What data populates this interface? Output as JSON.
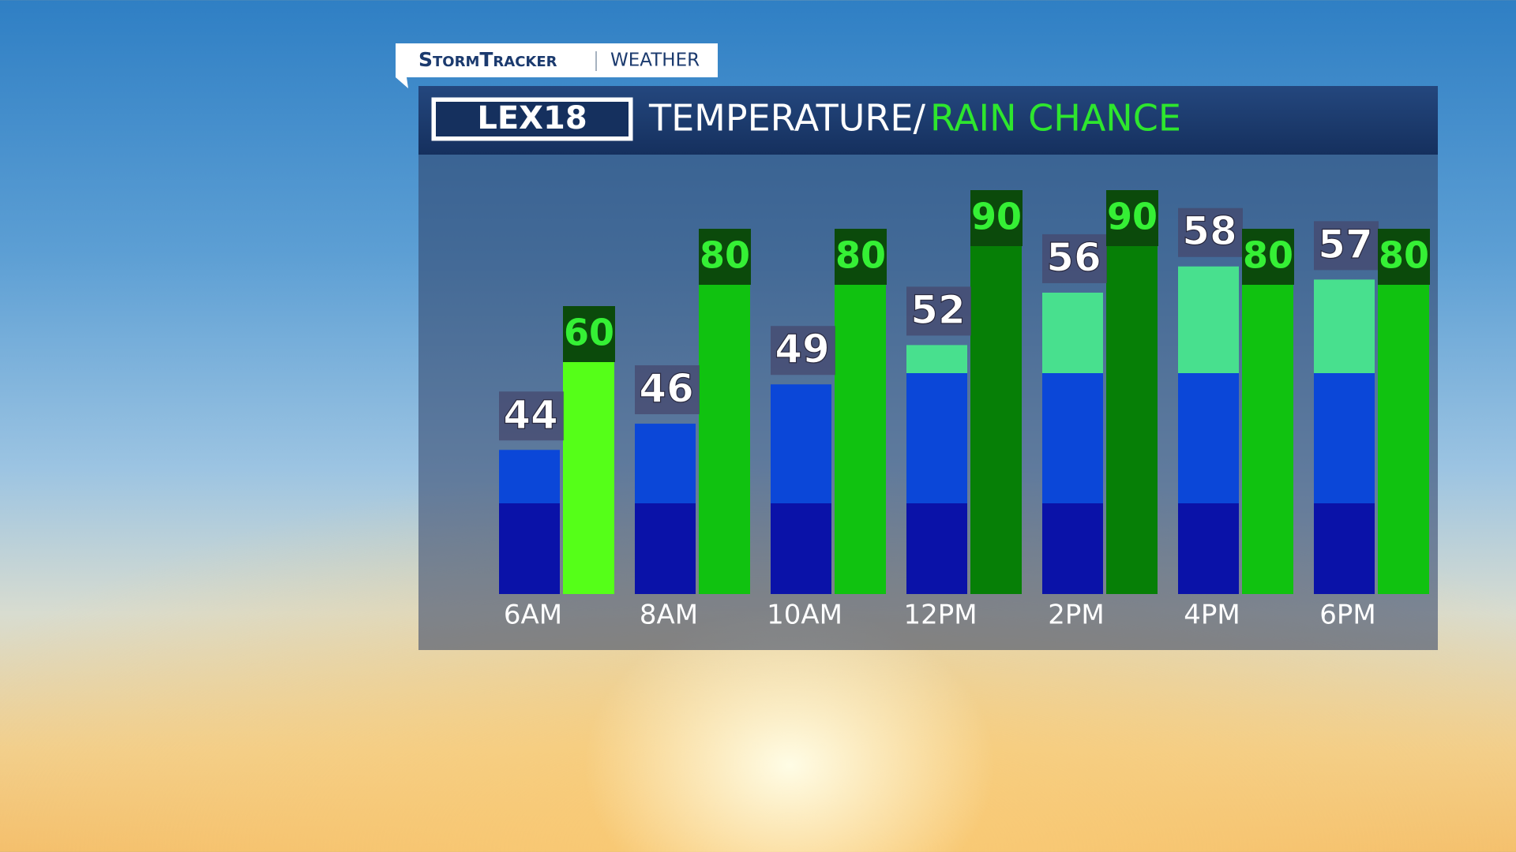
{
  "tab": {
    "brand": "StormTracker",
    "section": "WEATHER"
  },
  "logo": "LEX18",
  "chart_data": {
    "type": "bar",
    "title": "TEMPERATURE/",
    "title_highlight": "RAIN CHANCE",
    "categories": [
      "6AM",
      "8AM",
      "10AM",
      "12PM",
      "2PM",
      "4PM",
      "6PM"
    ],
    "ylim": [
      33,
      62.5
    ],
    "y2lim": [
      0,
      100
    ],
    "series": [
      {
        "name": "Temperature",
        "color": "#0b47d8",
        "values": [
          44,
          46,
          49,
          52,
          56,
          58,
          57
        ]
      },
      {
        "name": "Rain Chance",
        "axis": "y2",
        "colors": [
          "#55ff18",
          "#10c210",
          "#10c210",
          "#067f06",
          "#067f06",
          "#10c210",
          "#10c210"
        ],
        "values": [
          60,
          80,
          80,
          90,
          90,
          80,
          80
        ]
      }
    ]
  }
}
